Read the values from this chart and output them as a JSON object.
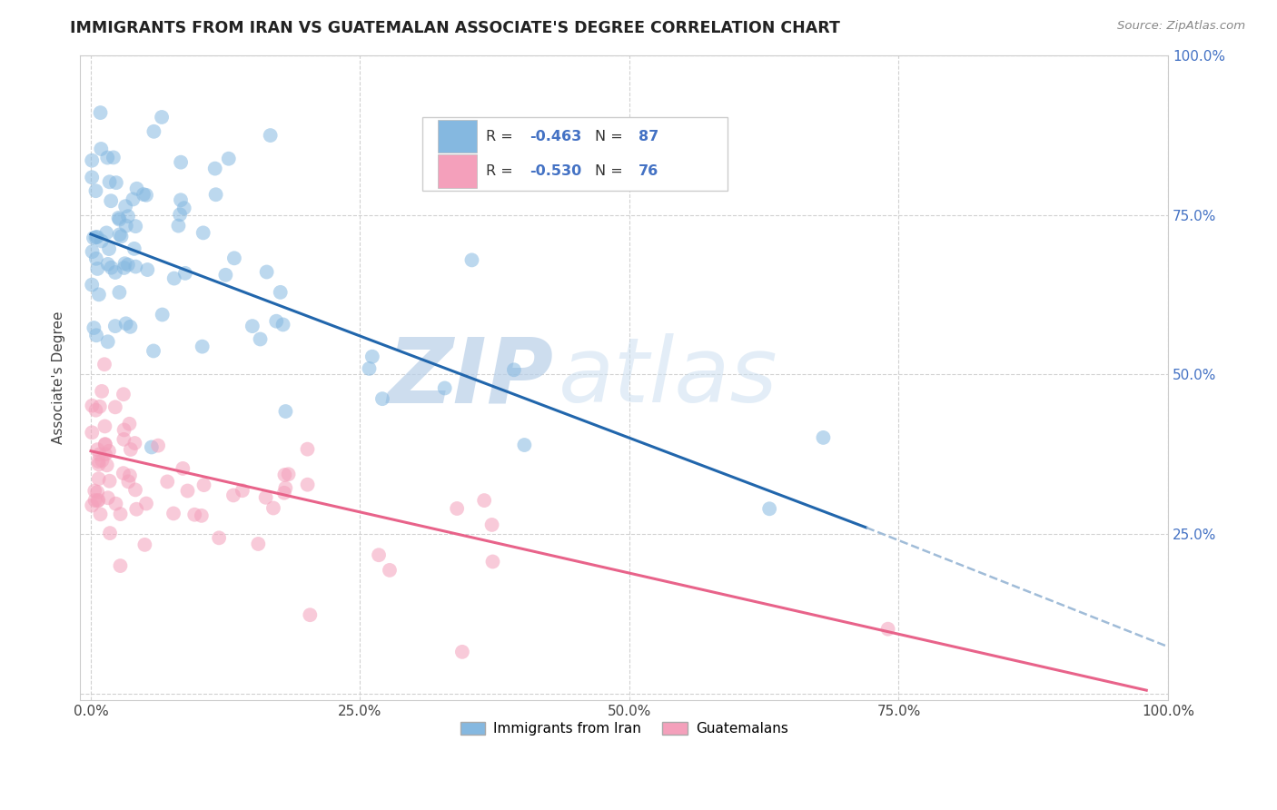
{
  "title": "IMMIGRANTS FROM IRAN VS GUATEMALAN ASSOCIATE'S DEGREE CORRELATION CHART",
  "source": "Source: ZipAtlas.com",
  "ylabel": "Associate's Degree",
  "legend_label_1": "Immigrants from Iran",
  "legend_label_2": "Guatemalans",
  "r1": -0.463,
  "n1": 87,
  "r2": -0.53,
  "n2": 76,
  "color1": "#85b8e0",
  "color2": "#f4a0bb",
  "line_color1": "#2166ac",
  "line_color2": "#e8638a",
  "line_color1_dash": "#a0bcd8",
  "watermark_zip": "ZIP",
  "watermark_atlas": "atlas",
  "xlim": [
    -0.01,
    1.0
  ],
  "ylim": [
    -0.01,
    1.0
  ],
  "x_ticks": [
    0.0,
    0.25,
    0.5,
    0.75,
    1.0
  ],
  "x_tick_labels": [
    "0.0%",
    "25.0%",
    "50.0%",
    "75.0%",
    "100.0%"
  ],
  "y_ticks": [
    0.0,
    0.25,
    0.5,
    0.75,
    1.0
  ],
  "y_tick_labels_right": [
    "",
    "25.0%",
    "50.0%",
    "75.0%",
    "100.0%"
  ],
  "line1_x0": 0.0,
  "line1_y0": 0.72,
  "line1_x1": 0.72,
  "line1_y1": 0.26,
  "line1_dash_x0": 0.72,
  "line1_dash_y0": 0.26,
  "line1_dash_x1": 1.02,
  "line1_dash_y1": 0.06,
  "line2_x0": 0.0,
  "line2_y0": 0.38,
  "line2_x1": 0.98,
  "line2_y1": 0.005
}
